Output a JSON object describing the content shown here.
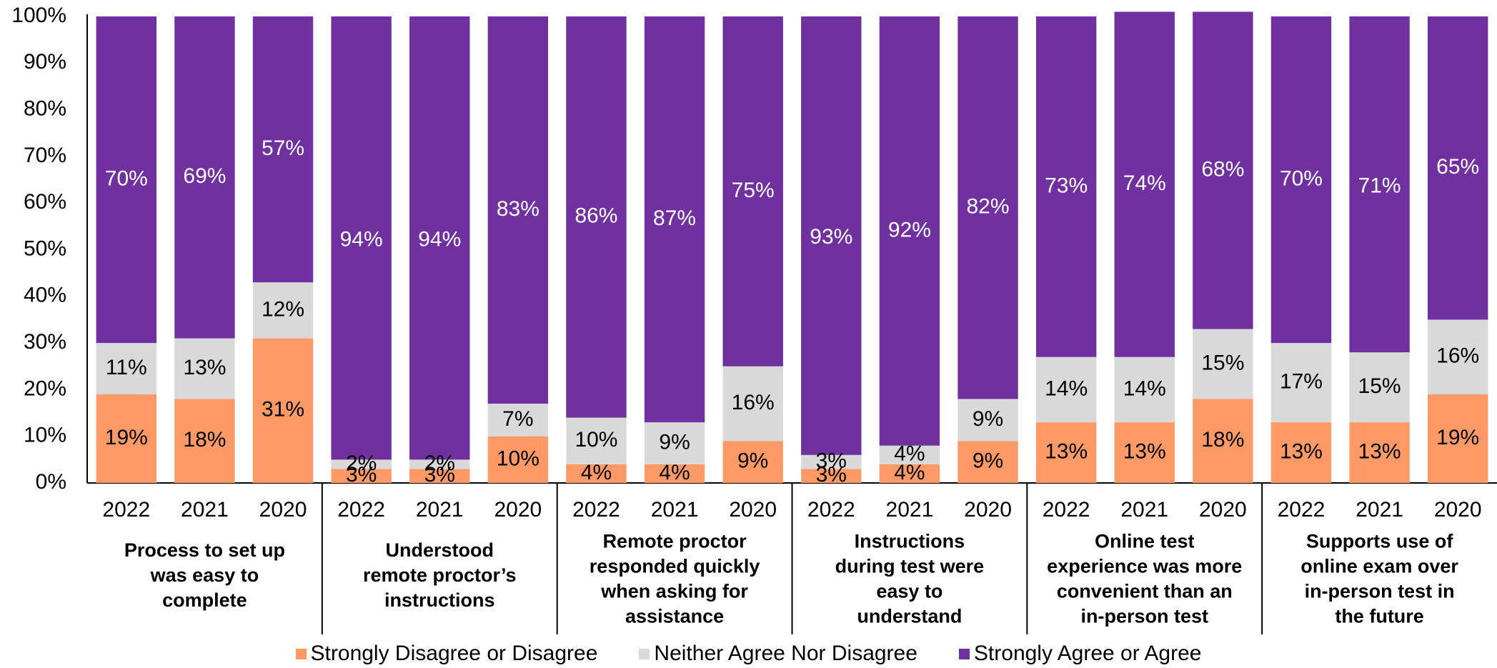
{
  "chart_data": {
    "type": "bar",
    "stacked": true,
    "percent": true,
    "title": "",
    "xlabel": "",
    "ylabel": "",
    "ylim": [
      0,
      100
    ],
    "yticks": [
      "0%",
      "10%",
      "20%",
      "30%",
      "40%",
      "50%",
      "60%",
      "70%",
      "80%",
      "90%",
      "100%"
    ],
    "colors": {
      "disagree": "#FF9A66",
      "neither": "#D9D9D9",
      "agree": "#7030A0",
      "axis": "#000000"
    },
    "groups": [
      {
        "label": [
          "Process to set up",
          "was easy to",
          "complete"
        ],
        "bars": [
          {
            "year": "2022",
            "disagree": 19,
            "neither": 11,
            "agree": 70,
            "labels": [
              "19%",
              "11%",
              "70%"
            ]
          },
          {
            "year": "2021",
            "disagree": 18,
            "neither": 13,
            "agree": 69,
            "labels": [
              "18%",
              "13%",
              "69%"
            ]
          },
          {
            "year": "2020",
            "disagree": 31,
            "neither": 12,
            "agree": 57,
            "labels": [
              "31%",
              "12%",
              "57%"
            ]
          }
        ]
      },
      {
        "label": [
          "Understood",
          "remote proctor’s",
          "instructions"
        ],
        "bars": [
          {
            "year": "2022",
            "disagree": 3,
            "neither": 2,
            "agree": 94,
            "labels": [
              "3%",
              "2%",
              "94%"
            ]
          },
          {
            "year": "2021",
            "disagree": 3,
            "neither": 2,
            "agree": 94,
            "labels": [
              "3%",
              "2%",
              "94%"
            ]
          },
          {
            "year": "2020",
            "disagree": 10,
            "neither": 7,
            "agree": 83,
            "labels": [
              "10%",
              "7%",
              "83%"
            ]
          }
        ]
      },
      {
        "label": [
          "Remote proctor",
          "responded quickly",
          "when asking for",
          "assistance"
        ],
        "bars": [
          {
            "year": "2022",
            "disagree": 4,
            "neither": 10,
            "agree": 86,
            "labels": [
              "4%",
              "10%",
              "86%"
            ]
          },
          {
            "year": "2021",
            "disagree": 4,
            "neither": 9,
            "agree": 87,
            "labels": [
              "4%",
              "9%",
              "87%"
            ]
          },
          {
            "year": "2020",
            "disagree": 9,
            "neither": 16,
            "agree": 75,
            "labels": [
              "9%",
              "16%",
              "75%"
            ]
          }
        ]
      },
      {
        "label": [
          "Instructions",
          "during test were",
          "easy to",
          "understand"
        ],
        "bars": [
          {
            "year": "2022",
            "disagree": 3,
            "neither": 3,
            "agree": 93,
            "labels": [
              "3%",
              "3%",
              "93%"
            ]
          },
          {
            "year": "2021",
            "disagree": 4,
            "neither": 4,
            "agree": 92,
            "labels": [
              "4%",
              "4%",
              "92%"
            ]
          },
          {
            "year": "2020",
            "disagree": 9,
            "neither": 9,
            "agree": 82,
            "labels": [
              "9%",
              "9%",
              "82%"
            ]
          }
        ]
      },
      {
        "label": [
          "Online test",
          "experience was more",
          "convenient than an",
          "in-person test"
        ],
        "bars": [
          {
            "year": "2022",
            "disagree": 13,
            "neither": 14,
            "agree": 73,
            "labels": [
              "13%",
              "14%",
              "73%"
            ]
          },
          {
            "year": "2021",
            "disagree": 13,
            "neither": 14,
            "agree": 74,
            "labels": [
              "13%",
              "14%",
              "74%"
            ]
          },
          {
            "year": "2020",
            "disagree": 18,
            "neither": 15,
            "agree": 68,
            "labels": [
              "18%",
              "15%",
              "68%"
            ]
          }
        ]
      },
      {
        "label": [
          "Supports use of",
          "online exam over",
          "in-person test in",
          "the future"
        ],
        "bars": [
          {
            "year": "2022",
            "disagree": 13,
            "neither": 17,
            "agree": 70,
            "labels": [
              "13%",
              "17%",
              "70%"
            ]
          },
          {
            "year": "2021",
            "disagree": 13,
            "neither": 15,
            "agree": 71,
            "labels": [
              "13%",
              "15%",
              "71%"
            ]
          },
          {
            "year": "2020",
            "disagree": 19,
            "neither": 16,
            "agree": 65,
            "labels": [
              "19%",
              "16%",
              "65%"
            ]
          }
        ]
      }
    ],
    "legend": {
      "position": "bottom",
      "entries": [
        "Strongly Disagree or Disagree",
        "Neither Agree Nor Disagree",
        "Strongly Agree or Agree"
      ]
    }
  }
}
